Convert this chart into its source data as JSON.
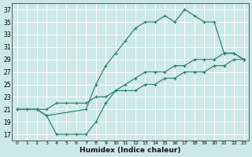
{
  "background_color": "#cce8e8",
  "grid_color": "#ffffff",
  "line_color": "#2d7d6b",
  "xlabel": "Humidex (Indice chaleur)",
  "ylim": [
    16,
    38
  ],
  "xlim": [
    -0.5,
    23.5
  ],
  "yticks": [
    17,
    19,
    21,
    23,
    25,
    27,
    29,
    31,
    33,
    35,
    37
  ],
  "xticks": [
    0,
    1,
    2,
    3,
    4,
    5,
    6,
    7,
    8,
    9,
    10,
    11,
    12,
    13,
    14,
    15,
    16,
    17,
    18,
    19,
    20,
    21,
    22,
    23
  ],
  "line_straight_x": [
    0,
    1,
    2,
    3,
    4,
    5,
    6,
    7,
    8,
    9,
    10,
    11,
    12,
    13,
    14,
    15,
    16,
    17,
    18,
    19,
    20,
    21,
    22,
    23
  ],
  "line_straight_y": [
    21,
    21,
    21,
    21,
    22,
    22,
    22,
    22,
    23,
    23,
    24,
    24,
    24,
    25,
    25,
    26,
    26,
    27,
    27,
    27,
    28,
    28,
    29,
    29
  ],
  "line_upper_x": [
    0,
    2,
    3,
    7,
    8,
    9,
    10,
    11,
    12,
    13,
    14,
    15,
    16,
    17,
    18,
    19,
    20,
    21,
    22,
    23
  ],
  "line_upper_y": [
    21,
    21,
    20,
    21,
    25,
    28,
    30,
    32,
    34,
    35,
    35,
    36,
    35,
    37,
    36,
    35,
    35,
    30,
    30,
    29
  ],
  "line_lower_x": [
    0,
    1,
    2,
    3,
    4,
    5,
    6,
    7,
    8,
    9,
    10,
    11,
    12,
    13,
    14,
    15,
    16,
    17,
    18,
    19,
    20,
    21,
    22,
    23
  ],
  "line_lower_y": [
    21,
    21,
    21,
    20,
    17,
    17,
    17,
    17,
    19,
    22,
    24,
    25,
    26,
    27,
    27,
    27,
    28,
    28,
    29,
    29,
    29,
    30,
    30,
    29
  ]
}
